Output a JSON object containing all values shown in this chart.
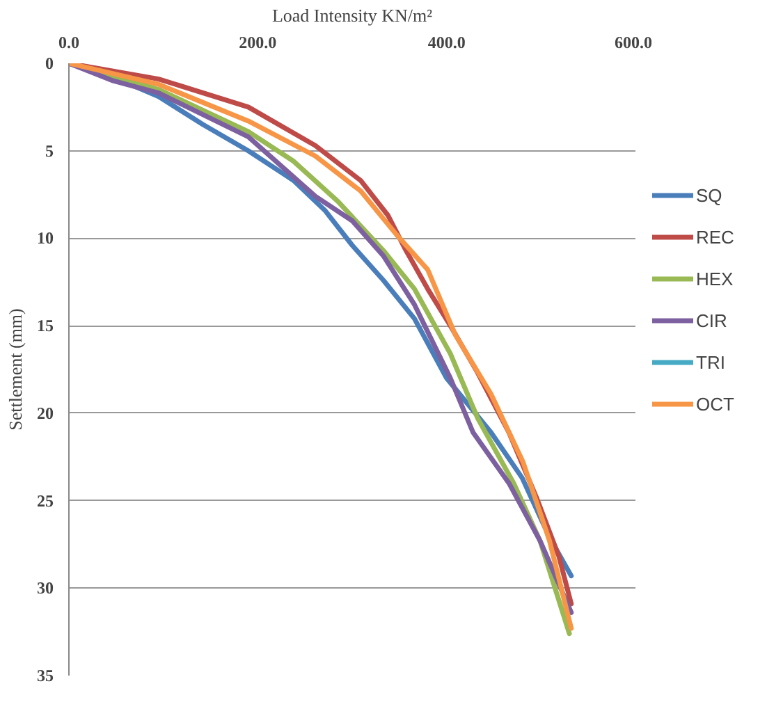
{
  "chart_data": {
    "type": "line",
    "xlabel": "Load Intensity KN/m²",
    "ylabel": "Settlement (mm)",
    "xlim": [
      0,
      600
    ],
    "xticks": [
      {
        "value": 0,
        "label": "0.0"
      },
      {
        "value": 200,
        "label": "200.0"
      },
      {
        "value": 400,
        "label": "400.0"
      },
      {
        "value": 600,
        "label": "600.0"
      }
    ],
    "ylim": [
      35,
      0
    ],
    "yticks": [
      0,
      5,
      10,
      15,
      20,
      25,
      30,
      35
    ],
    "grid": "y",
    "legend": "right",
    "marker": "none",
    "line_style": "solid",
    "series": [
      {
        "name": "SQ",
        "color": "#4a7ebb",
        "x": [
          0,
          47,
          95,
          142,
          190,
          238,
          271,
          300,
          333,
          366,
          400,
          447,
          480,
          509,
          532
        ],
        "values": [
          0,
          0.8,
          1.9,
          3.5,
          5.0,
          6.7,
          8.4,
          10.4,
          12.4,
          14.6,
          18.0,
          21.1,
          23.7,
          27.1,
          29.3
        ]
      },
      {
        "name": "REC",
        "color": "#be4b48",
        "x": [
          0,
          95,
          190,
          261,
          309,
          338,
          357,
          380,
          404,
          433,
          466,
          495,
          519,
          532
        ],
        "values": [
          0,
          0.9,
          2.5,
          4.7,
          6.7,
          8.7,
          10.7,
          12.9,
          15.0,
          17.7,
          21.1,
          24.8,
          28.2,
          30.9
        ]
      },
      {
        "name": "HEX",
        "color": "#98b954",
        "x": [
          0,
          95,
          190,
          238,
          285,
          333,
          366,
          404,
          433,
          471,
          499,
          530
        ],
        "values": [
          0,
          1.5,
          3.9,
          5.6,
          7.9,
          10.7,
          12.9,
          16.6,
          20.3,
          24.0,
          27.3,
          32.6
        ]
      },
      {
        "name": "CIR",
        "color": "#7d60a0",
        "x": [
          0,
          47,
          95,
          190,
          261,
          300,
          333,
          366,
          404,
          428,
          466,
          499,
          532
        ],
        "values": [
          0,
          1.0,
          1.7,
          4.2,
          7.6,
          9.0,
          11.0,
          13.8,
          18.0,
          21.1,
          24.0,
          27.3,
          31.4
        ]
      },
      {
        "name": "TRI",
        "color": "#46aac5"
      },
      {
        "name": "OCT",
        "color": "#f79646",
        "x": [
          0,
          95,
          190,
          261,
          309,
          347,
          380,
          409,
          447,
          481,
          509,
          532
        ],
        "values": [
          0,
          1.2,
          3.3,
          5.3,
          7.3,
          9.8,
          11.8,
          15.5,
          18.9,
          22.8,
          27.3,
          32.3
        ]
      }
    ]
  }
}
